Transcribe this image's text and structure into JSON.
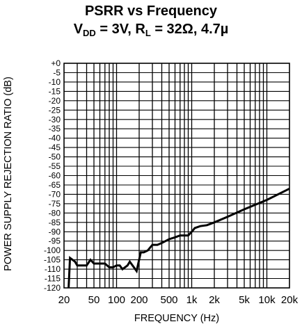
{
  "chart_data": {
    "type": "line",
    "title_main": "PSRR vs Frequency",
    "title_sub": {
      "vdd_prefix": "V",
      "vdd_subscript": "DD",
      "vdd_rest": " = 3V, R",
      "rl_subscript": "L",
      "rl_rest": " = 32Ω, 4.7µ"
    },
    "xlabel": "FREQUENCY (Hz)",
    "ylabel": "POWER SUPPLY REJECTION RATIO (dB)",
    "x_scale": "log",
    "xlim": [
      20,
      20000
    ],
    "ylim": [
      -120,
      0
    ],
    "grid": true,
    "x_ticks": [
      {
        "value": 20,
        "label": "20"
      },
      {
        "value": 50,
        "label": "50"
      },
      {
        "value": 100,
        "label": "100"
      },
      {
        "value": 200,
        "label": "200"
      },
      {
        "value": 500,
        "label": "500"
      },
      {
        "value": 1000,
        "label": "1k"
      },
      {
        "value": 2000,
        "label": "2k"
      },
      {
        "value": 5000,
        "label": "5k"
      },
      {
        "value": 10000,
        "label": "10k"
      },
      {
        "value": 20000,
        "label": "20k"
      }
    ],
    "y_ticks": [
      "+0",
      "-5",
      "-10",
      "-15",
      "-20",
      "-25",
      "-30",
      "-35",
      "-40",
      "-45",
      "-50",
      "-55",
      "-60",
      "-65",
      "-70",
      "-75",
      "-80",
      "-85",
      "-90",
      "-95",
      "-100",
      "-105",
      "-110",
      "-115",
      "-120"
    ],
    "series": [
      {
        "values": [
          [
            23,
            -120
          ],
          [
            24,
            -104
          ],
          [
            28,
            -106
          ],
          [
            30,
            -108
          ],
          [
            35,
            -108
          ],
          [
            40,
            -108
          ],
          [
            45,
            -105
          ],
          [
            50,
            -107
          ],
          [
            55,
            -107
          ],
          [
            60,
            -107
          ],
          [
            70,
            -107
          ],
          [
            80,
            -109
          ],
          [
            90,
            -109
          ],
          [
            100,
            -108
          ],
          [
            110,
            -108
          ],
          [
            120,
            -110
          ],
          [
            140,
            -108
          ],
          [
            150,
            -106
          ],
          [
            170,
            -109
          ],
          [
            185,
            -111
          ],
          [
            210,
            -101
          ],
          [
            230,
            -101
          ],
          [
            260,
            -100
          ],
          [
            300,
            -97
          ],
          [
            350,
            -97
          ],
          [
            400,
            -96
          ],
          [
            500,
            -94
          ],
          [
            600,
            -93
          ],
          [
            700,
            -92
          ],
          [
            900,
            -92
          ],
          [
            1000,
            -90
          ],
          [
            1100,
            -88
          ],
          [
            1300,
            -87
          ],
          [
            1600,
            -86.5
          ],
          [
            2000,
            -85
          ],
          [
            3000,
            -82
          ],
          [
            5000,
            -78
          ],
          [
            10000,
            -73
          ],
          [
            20000,
            -67
          ]
        ]
      }
    ]
  }
}
